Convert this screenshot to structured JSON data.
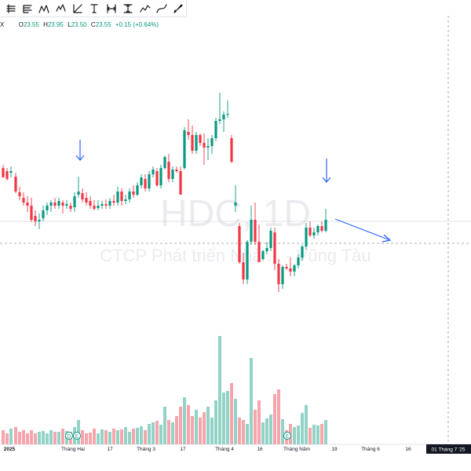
{
  "toolbar": {
    "tools": [
      "lines-icon",
      "fib-icon",
      "pattern-icon",
      "elliott-icon",
      "gann-icon",
      "text-tool-icon",
      "date-range-icon",
      "price-range-icon",
      "path-icon",
      "curve-icon",
      "brush-icon"
    ]
  },
  "legend": {
    "exchange_suffix": "X",
    "o_label": "O",
    "o_value": "23.55",
    "h_label": "H",
    "h_value": "23.95",
    "l_label": "L",
    "l_value": "23.50",
    "c_label": "C",
    "c_value": "23.55",
    "change": "+0.15 (+0.64%)"
  },
  "watermark": {
    "symbol": "HDC, 1D",
    "company": "CTCP Phát triển Nhà ... - Vũng Tàu"
  },
  "x_axis": {
    "labels": [
      "2025",
      "Tháng Hai",
      "17",
      "Tháng 3",
      "17",
      "Tháng 4",
      "16",
      "Tháng Năm",
      "19",
      "Tháng 6",
      "16"
    ],
    "highlight_label": "01 Tháng 7 '25"
  },
  "markers": {
    "dividend": [
      "D",
      "E",
      "E"
    ]
  },
  "colors": {
    "up": "#089981",
    "down": "#f23645",
    "volume_up": "#93d2c6",
    "volume_down": "#f5a5ab",
    "annotation": "#2962ff"
  }
}
